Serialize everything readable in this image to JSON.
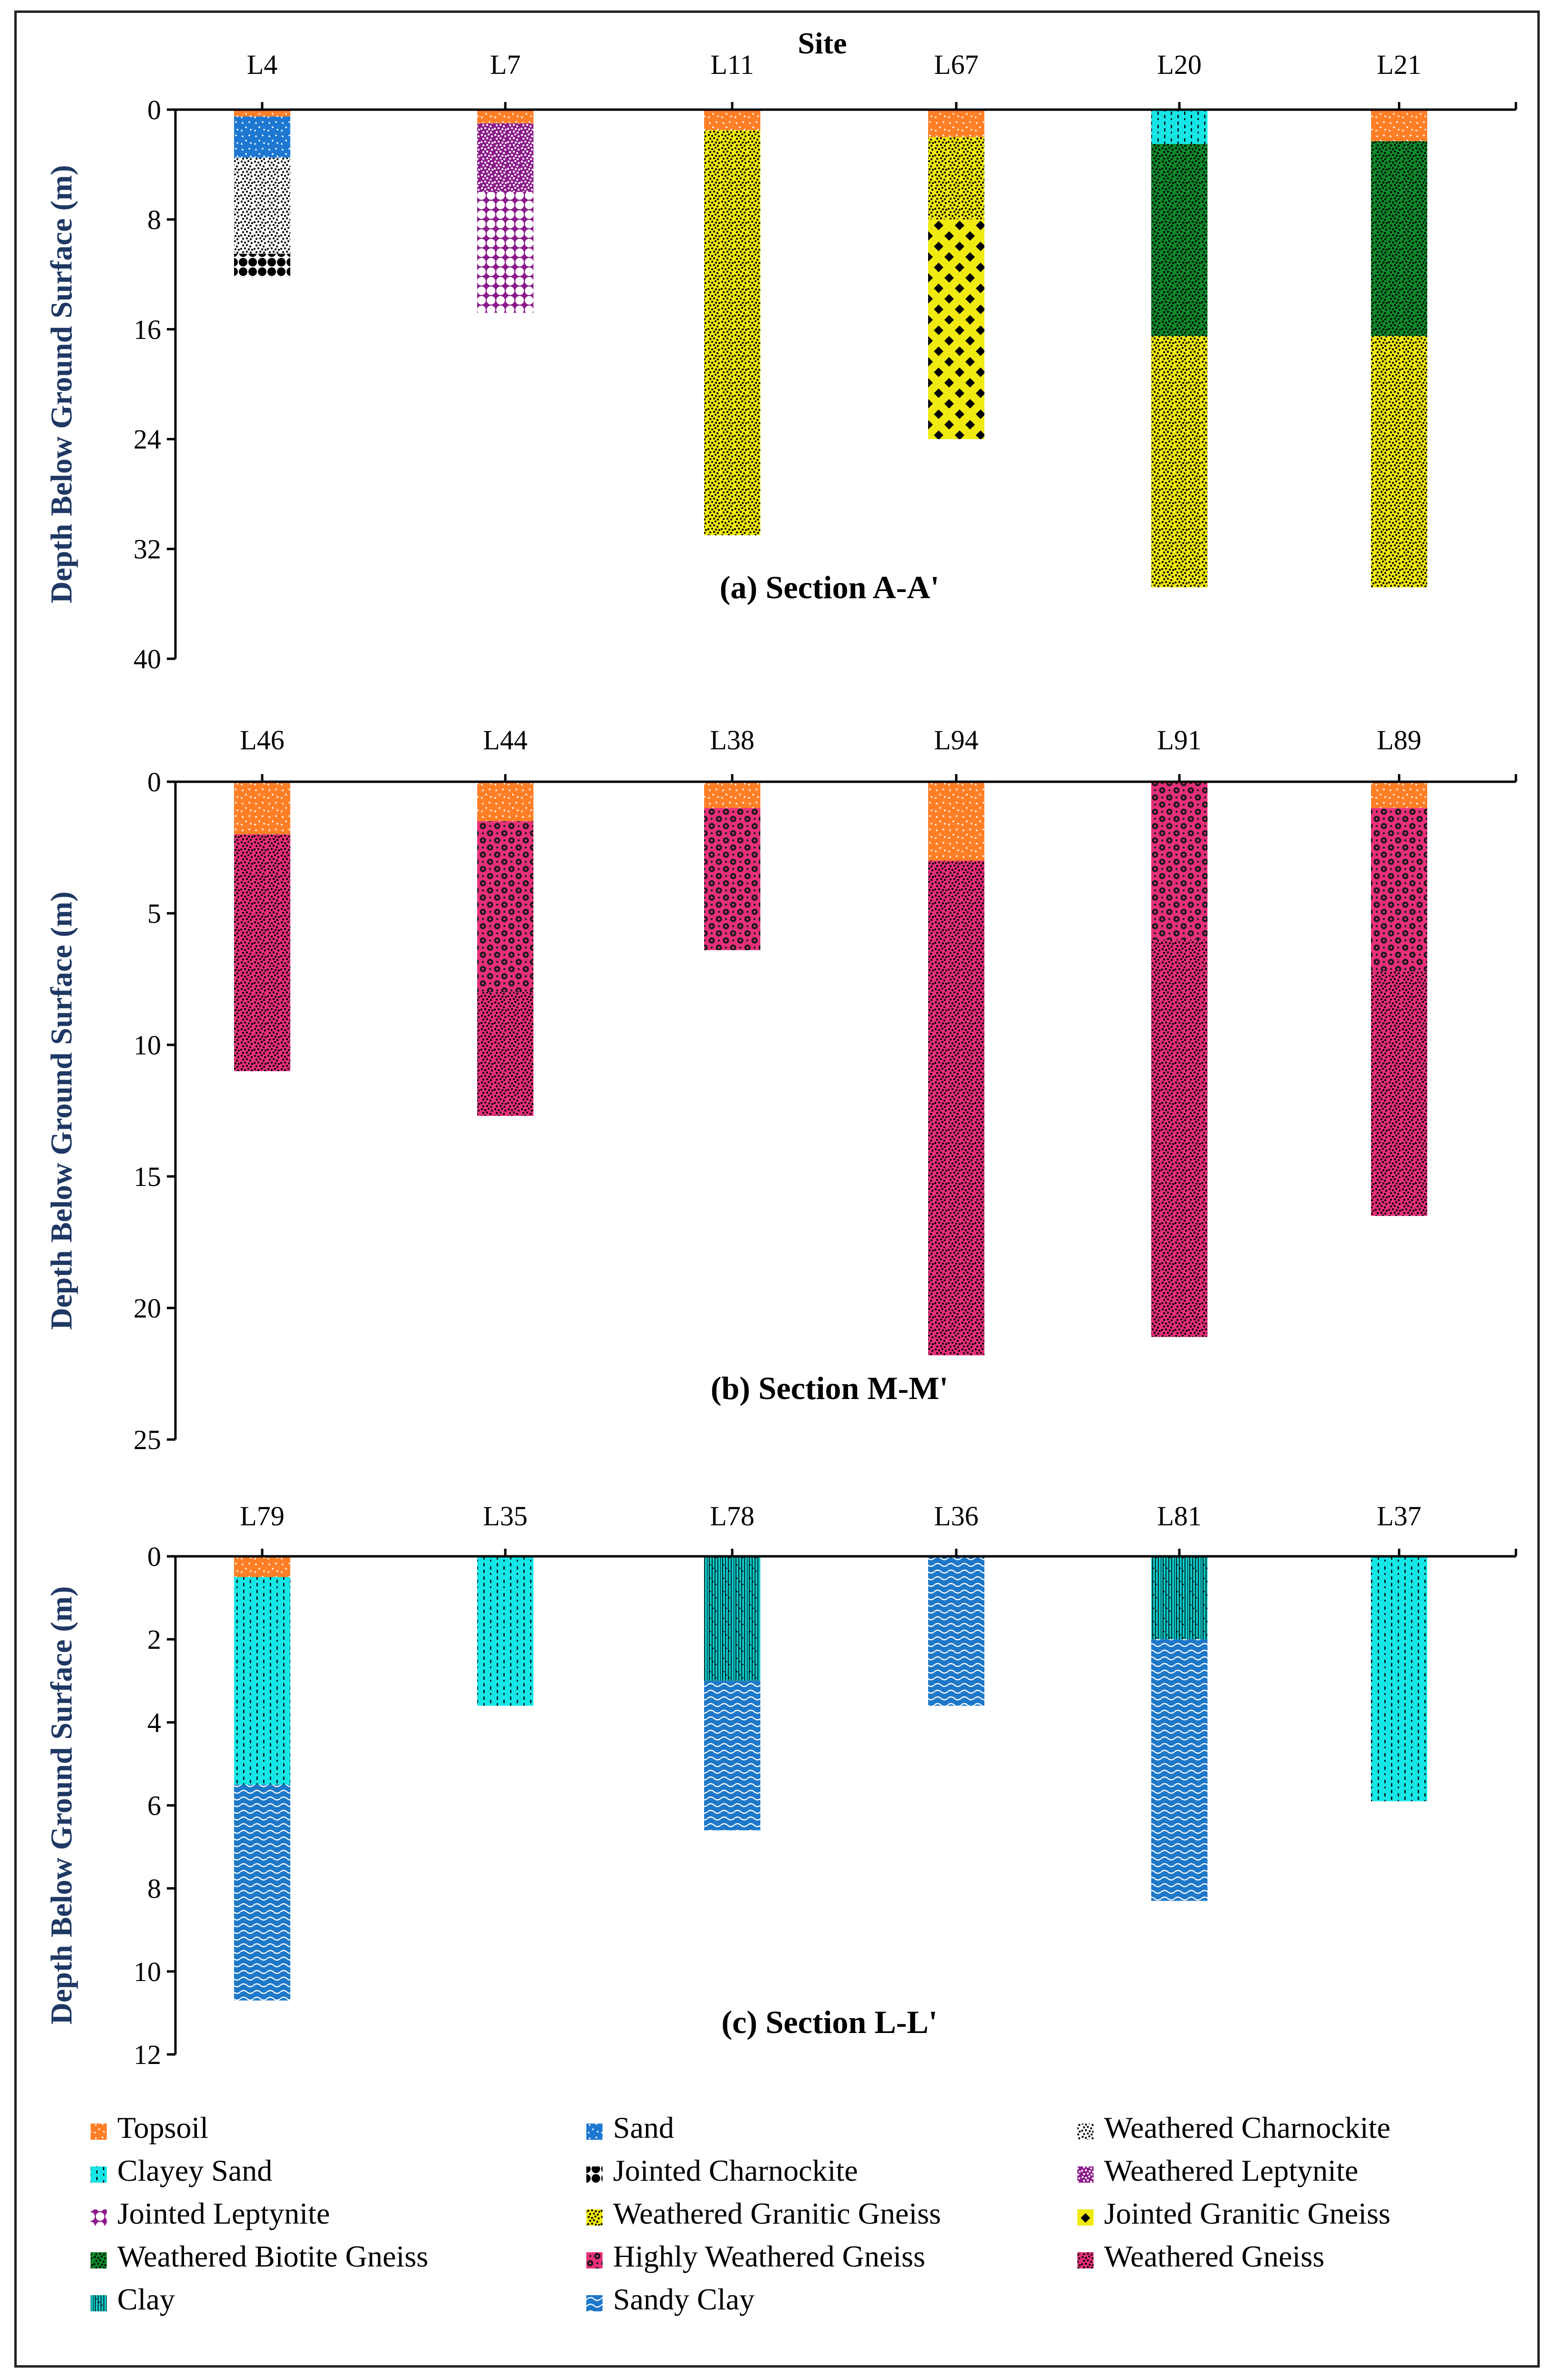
{
  "chart_data": {
    "type": "stratigraphic-column",
    "top_title": "Site",
    "ylabel": "Depth Below Ground Surface (m)",
    "materials": {
      "topsoil": {
        "label": "Topsoil",
        "color": "#ff7f27",
        "fg": "#ffffff",
        "pattern": "dots-sparse"
      },
      "sand": {
        "label": "Sand",
        "color": "#1e78d2",
        "fg": "#ffffff",
        "pattern": "dots-sparse"
      },
      "wcharn": {
        "label": "Weathered Charnockite",
        "color": "#ffffff",
        "fg": "#000000",
        "pattern": "dots-dense"
      },
      "clsand": {
        "label": "Clayey Sand",
        "color": "#16e6e6",
        "fg": "#000000",
        "pattern": "dash"
      },
      "jcharn": {
        "label": "Jointed Charnockite",
        "color": "#ffffff",
        "fg": "#000000",
        "pattern": "blobs"
      },
      "wlept": {
        "label": "Weathered Leptynite",
        "color": "#8b1a8b",
        "fg": "#ffffff",
        "pattern": "dots-dense"
      },
      "jlept": {
        "label": "Jointed Leptynite",
        "color": "#8b1a8b",
        "fg": "#ffffff",
        "pattern": "blobs"
      },
      "wgg": {
        "label": "Weathered Granitic Gneiss",
        "color": "#f0ea10",
        "fg": "#000000",
        "pattern": "dots-dense"
      },
      "jgg": {
        "label": "Jointed Granitic Gneiss",
        "color": "#f0ea10",
        "fg": "#000000",
        "pattern": "diamonds"
      },
      "wbg": {
        "label": "Weathered Biotite Gneiss",
        "color": "#0e8a2a",
        "fg": "#000000",
        "pattern": "dots-dense"
      },
      "hwg": {
        "label": "Highly Weathered Gneiss",
        "color": "#e8307a",
        "fg": "#000000",
        "pattern": "circles"
      },
      "wg": {
        "label": "Weathered Gneiss",
        "color": "#e8307a",
        "fg": "#000000",
        "pattern": "dots-dense"
      },
      "clay": {
        "label": "Clay",
        "color": "#10c8c8",
        "fg": "#000000",
        "pattern": "vlines"
      },
      "sandyclay": {
        "label": "Sandy Clay",
        "color": "#1e78c8",
        "fg": "#ffffff",
        "pattern": "waves"
      }
    },
    "legend_order": [
      [
        "topsoil",
        "sand",
        "wcharn"
      ],
      [
        "clsand",
        "jcharn",
        "wlept"
      ],
      [
        "jlept",
        "wgg",
        "jgg"
      ],
      [
        "wbg",
        "hwg",
        "wg"
      ],
      [
        "clay",
        "sandyclay"
      ]
    ],
    "panels": [
      {
        "title": "(a) Section A-A'",
        "ylim": [
          0,
          40
        ],
        "yticks": [
          0,
          8,
          16,
          24,
          32,
          40
        ],
        "sites": [
          {
            "name": "L4",
            "layers": [
              {
                "m": "topsoil",
                "from": 0,
                "to": 0.5
              },
              {
                "m": "sand",
                "from": 0.5,
                "to": 3.5
              },
              {
                "m": "wcharn",
                "from": 3.5,
                "to": 10.5
              },
              {
                "m": "jcharn",
                "from": 10.5,
                "to": 12.2
              }
            ]
          },
          {
            "name": "L7",
            "layers": [
              {
                "m": "topsoil",
                "from": 0,
                "to": 1
              },
              {
                "m": "wlept",
                "from": 1,
                "to": 6
              },
              {
                "m": "jlept",
                "from": 6,
                "to": 14.8
              }
            ]
          },
          {
            "name": "L11",
            "layers": [
              {
                "m": "topsoil",
                "from": 0,
                "to": 1.5
              },
              {
                "m": "wgg",
                "from": 1.5,
                "to": 31
              }
            ]
          },
          {
            "name": "L67",
            "layers": [
              {
                "m": "topsoil",
                "from": 0,
                "to": 2
              },
              {
                "m": "wgg",
                "from": 2,
                "to": 8
              },
              {
                "m": "jgg",
                "from": 8,
                "to": 24
              }
            ]
          },
          {
            "name": "L20",
            "layers": [
              {
                "m": "clsand",
                "from": 0,
                "to": 2.5
              },
              {
                "m": "wbg",
                "from": 2.5,
                "to": 16.5
              },
              {
                "m": "wgg",
                "from": 16.5,
                "to": 34.8
              }
            ]
          },
          {
            "name": "L21",
            "layers": [
              {
                "m": "topsoil",
                "from": 0,
                "to": 2.3
              },
              {
                "m": "wbg",
                "from": 2.3,
                "to": 16.5
              },
              {
                "m": "wgg",
                "from": 16.5,
                "to": 34.8
              }
            ]
          }
        ]
      },
      {
        "title": "(b) Section M-M'",
        "ylim": [
          0,
          25
        ],
        "yticks": [
          0,
          5,
          10,
          15,
          20,
          25
        ],
        "sites": [
          {
            "name": "L46",
            "layers": [
              {
                "m": "topsoil",
                "from": 0,
                "to": 2
              },
              {
                "m": "wg",
                "from": 2,
                "to": 11
              }
            ]
          },
          {
            "name": "L44",
            "layers": [
              {
                "m": "topsoil",
                "from": 0,
                "to": 1.5
              },
              {
                "m": "hwg",
                "from": 1.5,
                "to": 8
              },
              {
                "m": "wg",
                "from": 8,
                "to": 12.7
              }
            ]
          },
          {
            "name": "L38",
            "layers": [
              {
                "m": "topsoil",
                "from": 0,
                "to": 1
              },
              {
                "m": "hwg",
                "from": 1,
                "to": 6.4
              }
            ]
          },
          {
            "name": "L94",
            "layers": [
              {
                "m": "topsoil",
                "from": 0,
                "to": 3
              },
              {
                "m": "wg",
                "from": 3,
                "to": 21.8
              }
            ]
          },
          {
            "name": "L91",
            "layers": [
              {
                "m": "hwg",
                "from": 0,
                "to": 6
              },
              {
                "m": "wg",
                "from": 6,
                "to": 21.1
              }
            ]
          },
          {
            "name": "L89",
            "layers": [
              {
                "m": "topsoil",
                "from": 0,
                "to": 1
              },
              {
                "m": "hwg",
                "from": 1,
                "to": 7.2
              },
              {
                "m": "wg",
                "from": 7.2,
                "to": 16.5
              }
            ]
          }
        ]
      },
      {
        "title": "(c) Section L-L'",
        "ylim": [
          0,
          12
        ],
        "yticks": [
          0,
          2,
          4,
          6,
          8,
          10,
          12
        ],
        "sites": [
          {
            "name": "L79",
            "layers": [
              {
                "m": "topsoil",
                "from": 0,
                "to": 0.5
              },
              {
                "m": "clsand",
                "from": 0.5,
                "to": 5.5
              },
              {
                "m": "sandyclay",
                "from": 5.5,
                "to": 10.7
              }
            ]
          },
          {
            "name": "L35",
            "layers": [
              {
                "m": "clsand",
                "from": 0,
                "to": 3.6
              }
            ]
          },
          {
            "name": "L78",
            "layers": [
              {
                "m": "clay",
                "from": 0,
                "to": 3
              },
              {
                "m": "sandyclay",
                "from": 3,
                "to": 6.6
              }
            ]
          },
          {
            "name": "L36",
            "layers": [
              {
                "m": "sandyclay",
                "from": 0,
                "to": 3.6
              }
            ]
          },
          {
            "name": "L81",
            "layers": [
              {
                "m": "clay",
                "from": 0,
                "to": 2
              },
              {
                "m": "sandyclay",
                "from": 2,
                "to": 8.3
              }
            ]
          },
          {
            "name": "L37",
            "layers": [
              {
                "m": "clsand",
                "from": 0,
                "to": 5.9
              }
            ]
          }
        ]
      }
    ]
  }
}
